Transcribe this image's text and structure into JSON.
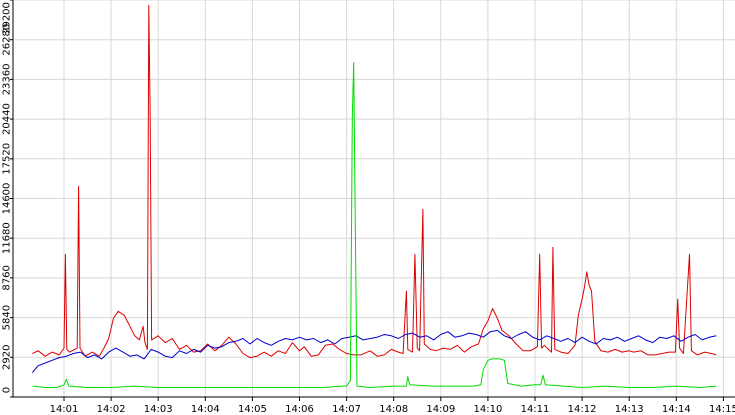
{
  "chart_data": {
    "type": "line",
    "title": "",
    "xlabel": "",
    "ylabel": "",
    "ylim": [
      0,
      29200
    ],
    "xlim": [
      "14:00:40",
      "14:15:00"
    ],
    "grid": true,
    "legend": "none",
    "y_ticks": [
      "0",
      "2920",
      "5840",
      "8760",
      "11680",
      "14600",
      "17520",
      "20440",
      "23360",
      "26280",
      "29200"
    ],
    "x_ticks": [
      {
        "t": 1,
        "label": "14:01"
      },
      {
        "t": 2,
        "label": "14:02"
      },
      {
        "t": 3,
        "label": "14:03"
      },
      {
        "t": 4,
        "label": "14:04"
      },
      {
        "t": 5,
        "label": "14:05"
      },
      {
        "t": 6,
        "label": "14:06"
      },
      {
        "t": 7,
        "label": "14:07"
      },
      {
        "t": 8,
        "label": "14:08"
      },
      {
        "t": 9,
        "label": "14:09"
      },
      {
        "t": 10,
        "label": "14:10"
      },
      {
        "t": 11,
        "label": "14:11"
      },
      {
        "t": 12,
        "label": "14:12"
      },
      {
        "t": 13,
        "label": "14:13"
      },
      {
        "t": 14,
        "label": "14:14"
      },
      {
        "t": 15,
        "label": "14:15"
      }
    ],
    "series": [
      {
        "color": "#dd0000",
        "points": [
          [
            0.33,
            3200
          ],
          [
            0.45,
            3400
          ],
          [
            0.6,
            3000
          ],
          [
            0.75,
            3300
          ],
          [
            0.9,
            3100
          ],
          [
            1.0,
            3600
          ],
          [
            1.03,
            10500
          ],
          [
            1.06,
            3500
          ],
          [
            1.12,
            3300
          ],
          [
            1.28,
            3600
          ],
          [
            1.31,
            15500
          ],
          [
            1.34,
            3600
          ],
          [
            1.45,
            3000
          ],
          [
            1.6,
            3300
          ],
          [
            1.75,
            3000
          ],
          [
            1.85,
            3600
          ],
          [
            1.95,
            4300
          ],
          [
            2.05,
            5800
          ],
          [
            2.15,
            6300
          ],
          [
            2.28,
            6000
          ],
          [
            2.4,
            5200
          ],
          [
            2.5,
            4500
          ],
          [
            2.6,
            4200
          ],
          [
            2.68,
            5200
          ],
          [
            2.72,
            4000
          ],
          [
            2.77,
            3500
          ],
          [
            2.8,
            28800
          ],
          [
            2.83,
            20500
          ],
          [
            2.86,
            4200
          ],
          [
            3.0,
            4500
          ],
          [
            3.15,
            4000
          ],
          [
            3.3,
            4300
          ],
          [
            3.45,
            3500
          ],
          [
            3.6,
            3800
          ],
          [
            3.75,
            3300
          ],
          [
            3.9,
            3400
          ],
          [
            4.05,
            3900
          ],
          [
            4.2,
            3400
          ],
          [
            4.35,
            3800
          ],
          [
            4.5,
            4400
          ],
          [
            4.65,
            3900
          ],
          [
            4.8,
            3200
          ],
          [
            4.95,
            2900
          ],
          [
            5.1,
            3000
          ],
          [
            5.25,
            3300
          ],
          [
            5.4,
            3000
          ],
          [
            5.55,
            3400
          ],
          [
            5.7,
            3200
          ],
          [
            5.85,
            4000
          ],
          [
            6.0,
            3400
          ],
          [
            6.1,
            3700
          ],
          [
            6.25,
            3000
          ],
          [
            6.4,
            3100
          ],
          [
            6.55,
            3800
          ],
          [
            6.7,
            3900
          ],
          [
            6.85,
            3500
          ],
          [
            7.0,
            3200
          ],
          [
            7.15,
            3100
          ],
          [
            7.3,
            3100
          ],
          [
            7.5,
            3400
          ],
          [
            7.65,
            3000
          ],
          [
            7.8,
            3100
          ],
          [
            7.95,
            3500
          ],
          [
            8.1,
            3300
          ],
          [
            8.2,
            3200
          ],
          [
            8.27,
            7800
          ],
          [
            8.3,
            3500
          ],
          [
            8.4,
            3300
          ],
          [
            8.45,
            10500
          ],
          [
            8.5,
            3600
          ],
          [
            8.55,
            3400
          ],
          [
            8.62,
            13800
          ],
          [
            8.65,
            3900
          ],
          [
            8.78,
            3500
          ],
          [
            8.9,
            3400
          ],
          [
            9.05,
            3600
          ],
          [
            9.2,
            3500
          ],
          [
            9.35,
            3800
          ],
          [
            9.5,
            3300
          ],
          [
            9.65,
            3700
          ],
          [
            9.8,
            3900
          ],
          [
            9.9,
            5000
          ],
          [
            10.0,
            5600
          ],
          [
            10.1,
            6500
          ],
          [
            10.2,
            5800
          ],
          [
            10.3,
            4900
          ],
          [
            10.45,
            4500
          ],
          [
            10.6,
            3900
          ],
          [
            10.75,
            3400
          ],
          [
            10.9,
            3400
          ],
          [
            11.05,
            3700
          ],
          [
            11.1,
            10500
          ],
          [
            11.14,
            3600
          ],
          [
            11.2,
            3800
          ],
          [
            11.35,
            3300
          ],
          [
            11.38,
            11000
          ],
          [
            11.42,
            3500
          ],
          [
            11.55,
            3300
          ],
          [
            11.7,
            3200
          ],
          [
            11.85,
            3800
          ],
          [
            11.92,
            6000
          ],
          [
            12.0,
            7200
          ],
          [
            12.05,
            8100
          ],
          [
            12.1,
            9200
          ],
          [
            12.15,
            8200
          ],
          [
            12.2,
            7800
          ],
          [
            12.27,
            4100
          ],
          [
            12.4,
            3400
          ],
          [
            12.55,
            3300
          ],
          [
            12.7,
            3500
          ],
          [
            12.85,
            3300
          ],
          [
            13.0,
            3400
          ],
          [
            13.1,
            3300
          ],
          [
            13.25,
            3400
          ],
          [
            13.4,
            3100
          ],
          [
            13.55,
            3100
          ],
          [
            13.7,
            3200
          ],
          [
            13.85,
            3300
          ],
          [
            13.98,
            3300
          ],
          [
            14.03,
            7200
          ],
          [
            14.07,
            3600
          ],
          [
            14.15,
            3200
          ],
          [
            14.28,
            10500
          ],
          [
            14.32,
            3400
          ],
          [
            14.45,
            3100
          ],
          [
            14.6,
            3300
          ],
          [
            14.75,
            3200
          ],
          [
            14.85,
            3100
          ]
        ]
      },
      {
        "color": "#0000cc",
        "points": [
          [
            0.33,
            1800
          ],
          [
            0.45,
            2300
          ],
          [
            0.6,
            2500
          ],
          [
            0.75,
            2700
          ],
          [
            0.9,
            2900
          ],
          [
            1.05,
            3000
          ],
          [
            1.2,
            3200
          ],
          [
            1.35,
            3300
          ],
          [
            1.5,
            2900
          ],
          [
            1.65,
            3100
          ],
          [
            1.8,
            2800
          ],
          [
            1.95,
            3300
          ],
          [
            2.1,
            3600
          ],
          [
            2.25,
            3300
          ],
          [
            2.4,
            3000
          ],
          [
            2.55,
            3100
          ],
          [
            2.7,
            2800
          ],
          [
            2.85,
            3500
          ],
          [
            3.0,
            3300
          ],
          [
            3.15,
            3000
          ],
          [
            3.3,
            2900
          ],
          [
            3.45,
            3400
          ],
          [
            3.6,
            3200
          ],
          [
            3.75,
            3500
          ],
          [
            3.9,
            3300
          ],
          [
            4.05,
            3800
          ],
          [
            4.2,
            3600
          ],
          [
            4.35,
            3700
          ],
          [
            4.5,
            4000
          ],
          [
            4.65,
            4100
          ],
          [
            4.8,
            4300
          ],
          [
            4.95,
            3900
          ],
          [
            5.1,
            4300
          ],
          [
            5.25,
            4000
          ],
          [
            5.4,
            3800
          ],
          [
            5.55,
            4100
          ],
          [
            5.7,
            4300
          ],
          [
            5.85,
            4200
          ],
          [
            6.0,
            4400
          ],
          [
            6.15,
            4200
          ],
          [
            6.3,
            4300
          ],
          [
            6.45,
            4000
          ],
          [
            6.6,
            4200
          ],
          [
            6.75,
            3900
          ],
          [
            6.9,
            4300
          ],
          [
            7.05,
            4400
          ],
          [
            7.2,
            4500
          ],
          [
            7.35,
            4200
          ],
          [
            7.5,
            4300
          ],
          [
            7.65,
            4400
          ],
          [
            7.8,
            4600
          ],
          [
            7.95,
            4500
          ],
          [
            8.1,
            4300
          ],
          [
            8.25,
            4600
          ],
          [
            8.4,
            4700
          ],
          [
            8.55,
            4400
          ],
          [
            8.7,
            4500
          ],
          [
            8.85,
            4200
          ],
          [
            9.0,
            4600
          ],
          [
            9.15,
            4800
          ],
          [
            9.3,
            4400
          ],
          [
            9.45,
            4500
          ],
          [
            9.6,
            4700
          ],
          [
            9.75,
            4600
          ],
          [
            9.9,
            4400
          ],
          [
            10.05,
            4800
          ],
          [
            10.2,
            4900
          ],
          [
            10.35,
            4500
          ],
          [
            10.5,
            4300
          ],
          [
            10.65,
            4600
          ],
          [
            10.8,
            4800
          ],
          [
            10.95,
            4400
          ],
          [
            11.1,
            4200
          ],
          [
            11.25,
            4500
          ],
          [
            11.4,
            4300
          ],
          [
            11.55,
            4100
          ],
          [
            11.7,
            4300
          ],
          [
            11.85,
            4000
          ],
          [
            12.0,
            4400
          ],
          [
            12.15,
            4100
          ],
          [
            12.3,
            3900
          ],
          [
            12.45,
            4300
          ],
          [
            12.6,
            4200
          ],
          [
            12.75,
            4400
          ],
          [
            12.9,
            4100
          ],
          [
            13.05,
            4300
          ],
          [
            13.2,
            4500
          ],
          [
            13.35,
            4200
          ],
          [
            13.5,
            4000
          ],
          [
            13.65,
            4400
          ],
          [
            13.8,
            4300
          ],
          [
            13.95,
            4500
          ],
          [
            14.1,
            4100
          ],
          [
            14.25,
            4400
          ],
          [
            14.4,
            4600
          ],
          [
            14.55,
            4200
          ],
          [
            14.7,
            4400
          ],
          [
            14.85,
            4500
          ]
        ]
      },
      {
        "color": "#00dd00",
        "points": [
          [
            0.33,
            800
          ],
          [
            0.6,
            700
          ],
          [
            0.85,
            700
          ],
          [
            1.0,
            900
          ],
          [
            1.05,
            1300
          ],
          [
            1.1,
            800
          ],
          [
            1.5,
            700
          ],
          [
            2.0,
            700
          ],
          [
            2.5,
            800
          ],
          [
            3.0,
            700
          ],
          [
            3.5,
            700
          ],
          [
            4.0,
            700
          ],
          [
            4.5,
            700
          ],
          [
            5.0,
            700
          ],
          [
            5.5,
            700
          ],
          [
            6.0,
            700
          ],
          [
            6.5,
            700
          ],
          [
            6.9,
            800
          ],
          [
            7.0,
            800
          ],
          [
            7.08,
            1200
          ],
          [
            7.12,
            20500
          ],
          [
            7.15,
            24600
          ],
          [
            7.18,
            14000
          ],
          [
            7.22,
            800
          ],
          [
            7.5,
            700
          ],
          [
            8.0,
            800
          ],
          [
            8.27,
            800
          ],
          [
            8.3,
            1500
          ],
          [
            8.34,
            900
          ],
          [
            8.8,
            800
          ],
          [
            9.3,
            800
          ],
          [
            9.7,
            800
          ],
          [
            9.85,
            900
          ],
          [
            9.9,
            2000
          ],
          [
            10.0,
            2700
          ],
          [
            10.1,
            2800
          ],
          [
            10.25,
            2800
          ],
          [
            10.35,
            2700
          ],
          [
            10.42,
            1000
          ],
          [
            10.7,
            800
          ],
          [
            11.0,
            900
          ],
          [
            11.12,
            900
          ],
          [
            11.17,
            1600
          ],
          [
            11.22,
            900
          ],
          [
            11.6,
            800
          ],
          [
            12.0,
            700
          ],
          [
            12.5,
            800
          ],
          [
            13.0,
            700
          ],
          [
            13.5,
            700
          ],
          [
            14.0,
            800
          ],
          [
            14.5,
            700
          ],
          [
            14.85,
            800
          ]
        ]
      }
    ]
  }
}
